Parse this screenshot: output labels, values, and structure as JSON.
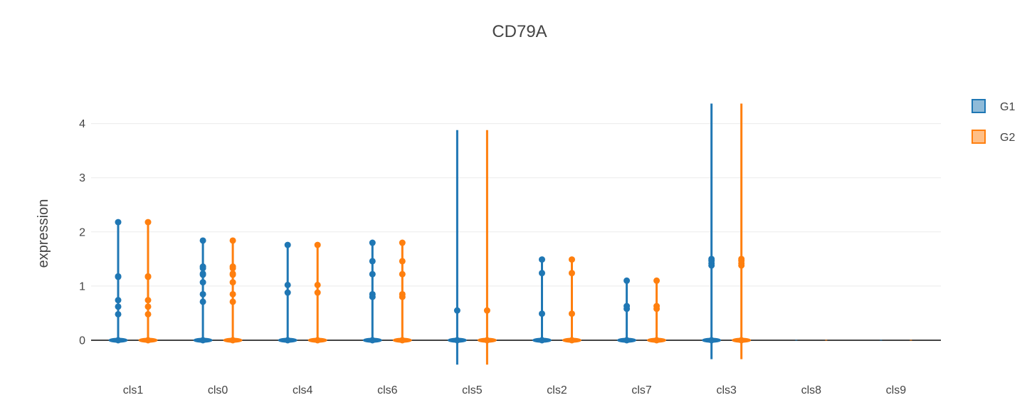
{
  "chart_data": {
    "type": "violin",
    "title": "CD79A",
    "xlabel": "",
    "ylabel": "expression",
    "ylim": [
      -0.6,
      4.6
    ],
    "yticks": [
      0,
      1,
      2,
      3,
      4
    ],
    "grid": true,
    "legend_position": "top-right",
    "categories": [
      "cls1",
      "cls0",
      "cls4",
      "cls6",
      "cls5",
      "cls2",
      "cls7",
      "cls3",
      "cls8",
      "cls9"
    ],
    "series": [
      {
        "name": "G1",
        "color": "#1f77b4",
        "violins": [
          {
            "min": 0,
            "max": 2.18,
            "points": [
              0,
              0.48,
              0.62,
              0.74,
              1.17,
              1.18,
              2.18
            ]
          },
          {
            "min": 0,
            "max": 1.84,
            "points": [
              0,
              0.71,
              0.85,
              1.07,
              1.21,
              1.23,
              1.33,
              1.36,
              1.84
            ]
          },
          {
            "min": 0,
            "max": 1.76,
            "points": [
              0,
              0.88,
              1.02,
              1.76
            ]
          },
          {
            "min": 0,
            "max": 1.8,
            "points": [
              0,
              0.8,
              0.85,
              1.22,
              1.46,
              1.8
            ]
          },
          {
            "min": -0.45,
            "max": 3.88,
            "points": [
              0,
              0.55
            ]
          },
          {
            "min": 0,
            "max": 1.49,
            "points": [
              0,
              0.49,
              1.24,
              1.49
            ]
          },
          {
            "min": 0,
            "max": 1.1,
            "points": [
              0,
              0.58,
              0.63,
              1.1
            ]
          },
          {
            "min": -0.35,
            "max": 4.37,
            "points": [
              0,
              1.38,
              1.42,
              1.47,
              1.5
            ]
          },
          {
            "min": 0,
            "max": 0,
            "points": []
          },
          {
            "min": 0,
            "max": 0,
            "points": []
          }
        ]
      },
      {
        "name": "G2",
        "color": "#ff7f0e",
        "violins": [
          {
            "min": 0,
            "max": 2.18,
            "points": [
              0,
              0.48,
              0.62,
              0.74,
              1.17,
              1.18,
              2.18
            ]
          },
          {
            "min": 0,
            "max": 1.84,
            "points": [
              0,
              0.71,
              0.85,
              1.07,
              1.21,
              1.23,
              1.33,
              1.36,
              1.84
            ]
          },
          {
            "min": 0,
            "max": 1.76,
            "points": [
              0,
              0.88,
              1.02,
              1.76
            ]
          },
          {
            "min": 0,
            "max": 1.8,
            "points": [
              0,
              0.8,
              0.85,
              1.22,
              1.46,
              1.8
            ]
          },
          {
            "min": -0.45,
            "max": 3.88,
            "points": [
              0,
              0.55
            ]
          },
          {
            "min": 0,
            "max": 1.49,
            "points": [
              0,
              0.49,
              1.24,
              1.49
            ]
          },
          {
            "min": 0,
            "max": 1.1,
            "points": [
              0,
              0.58,
              0.63,
              1.1
            ]
          },
          {
            "min": -0.35,
            "max": 4.37,
            "points": [
              0,
              1.38,
              1.42,
              1.47,
              1.5
            ]
          },
          {
            "min": 0,
            "max": 0,
            "points": []
          },
          {
            "min": 0,
            "max": 0,
            "points": []
          }
        ]
      }
    ]
  }
}
